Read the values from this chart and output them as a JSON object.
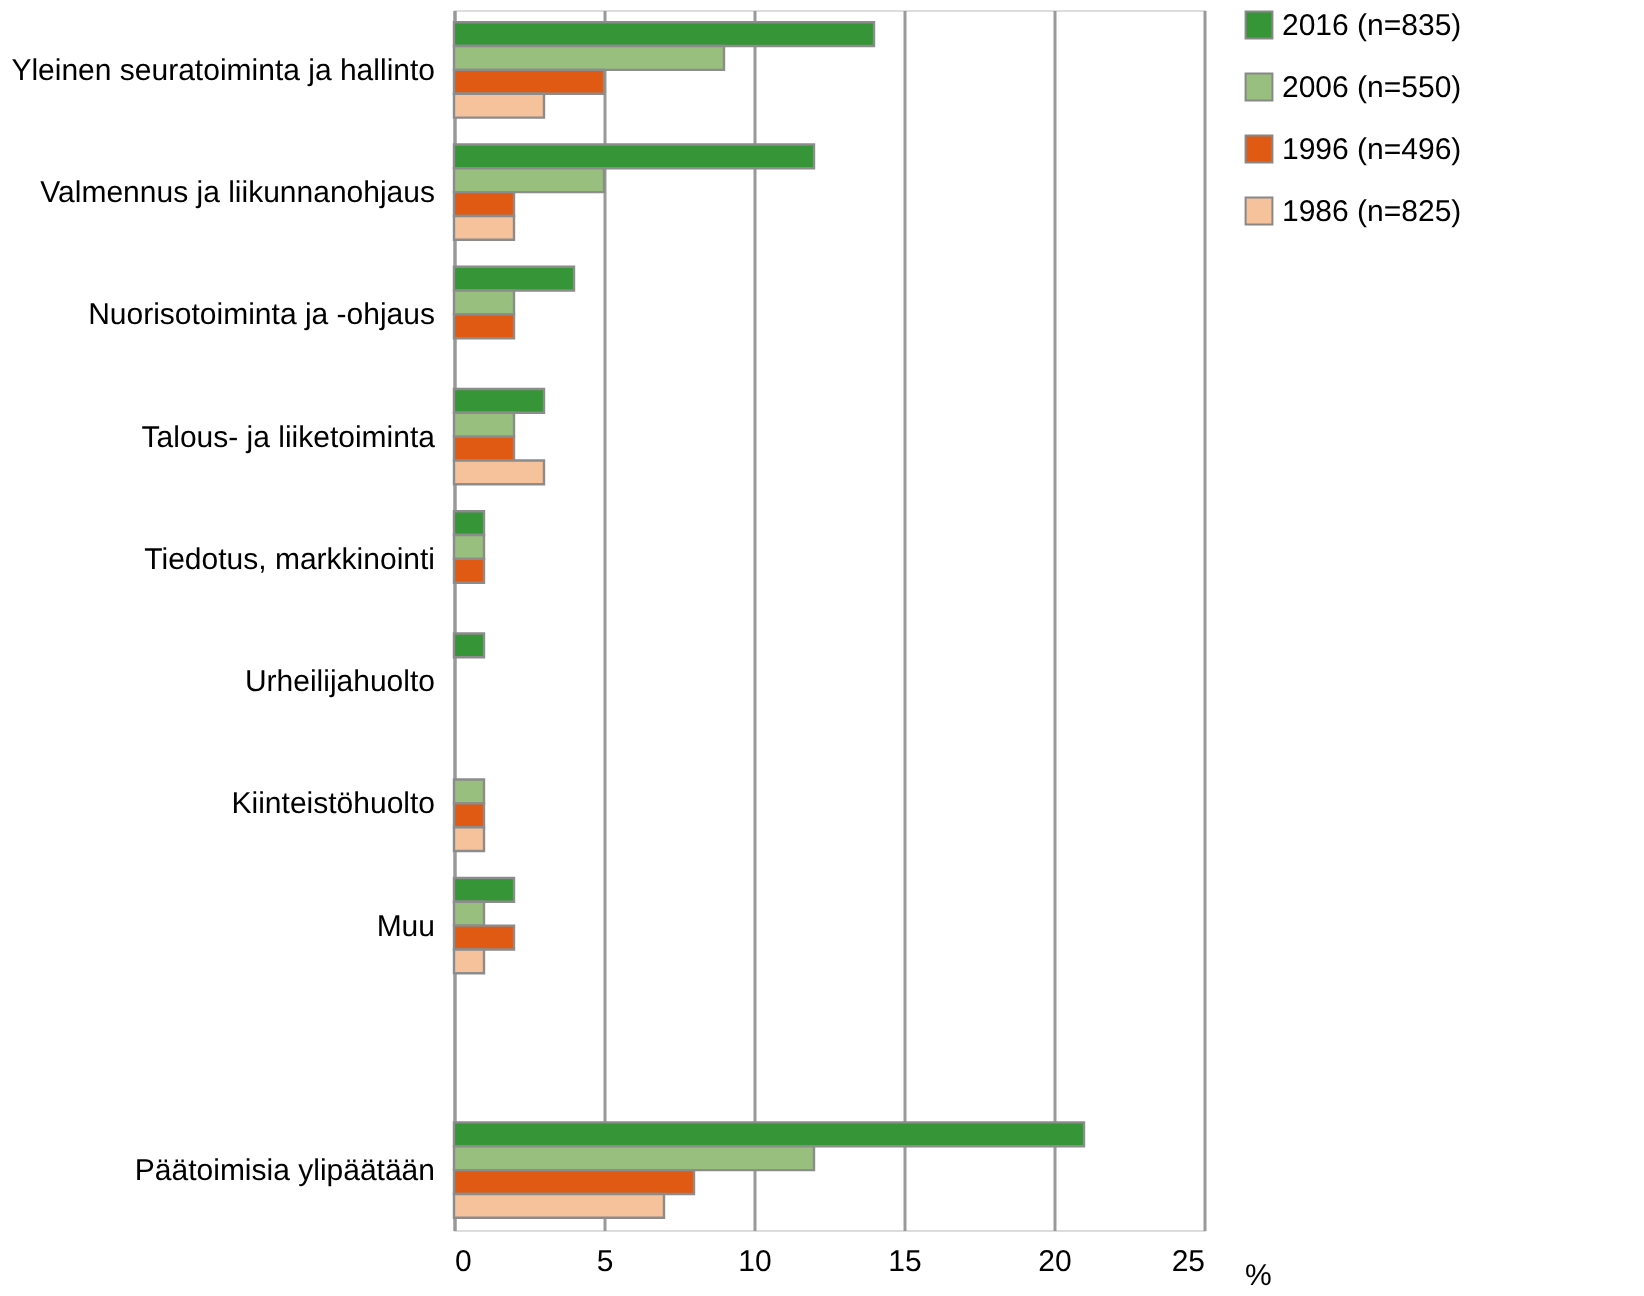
{
  "chart_data": {
    "type": "bar",
    "orientation": "horizontal",
    "xlabel": "%",
    "categories": [
      "Yleinen seuratoiminta ja hallinto",
      "Valmennus ja liikunnanohjaus",
      "Nuorisotoiminta ja -ohjaus",
      "Talous- ja liiketoiminta",
      "Tiedotus, markkinointi",
      "Urheilijahuolto",
      "Kiinteistöhuolto",
      "Muu",
      null,
      "Päätoimisia ylipäätään"
    ],
    "series": [
      {
        "name": "2016 (n=835)",
        "color": "#359537",
        "values": [
          14,
          12,
          4,
          3,
          1,
          1,
          null,
          2,
          null,
          21
        ]
      },
      {
        "name": "2006 (n=550)",
        "color": "#98bf7e",
        "values": [
          9,
          5,
          2,
          2,
          1,
          null,
          1,
          1,
          null,
          12
        ]
      },
      {
        "name": "1996 (n=496)",
        "color": "#e05a13",
        "values": [
          5,
          2,
          2,
          2,
          1,
          null,
          1,
          2,
          null,
          8
        ]
      },
      {
        "name": "1986 (n=825)",
        "color": "#f5c29c",
        "values": [
          3,
          2,
          null,
          3,
          null,
          null,
          1,
          1,
          null,
          7
        ]
      }
    ],
    "xlim": [
      0,
      25
    ],
    "xticks": [
      0,
      5,
      10,
      15,
      20,
      25
    ],
    "grid": "x",
    "legend": "right"
  }
}
